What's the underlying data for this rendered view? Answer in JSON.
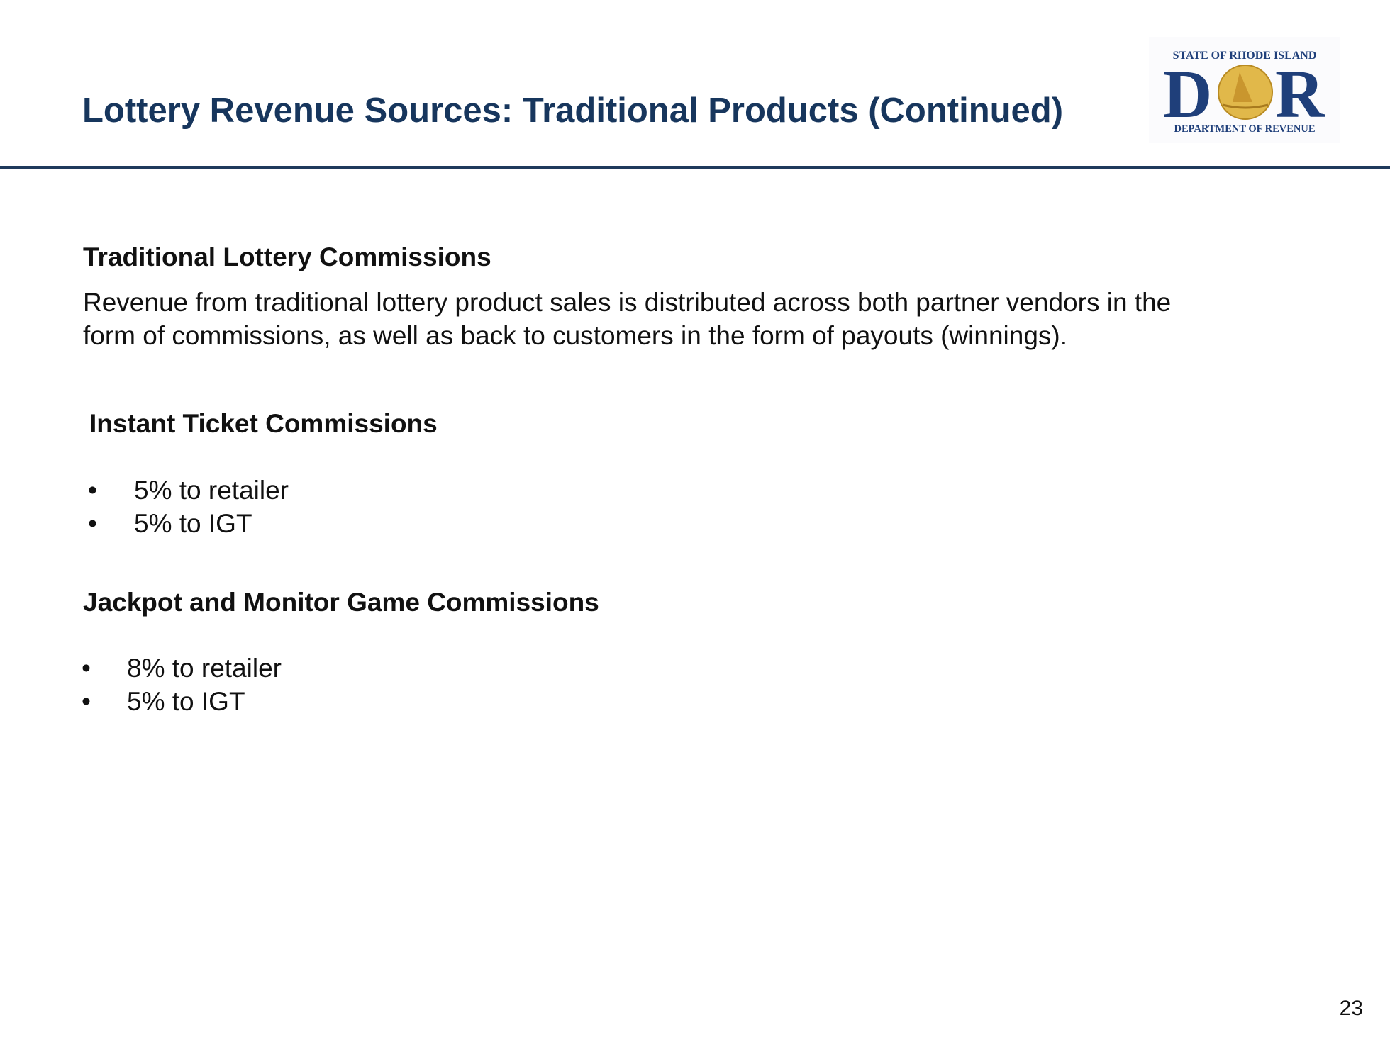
{
  "header": {
    "title": "Lottery Revenue Sources: Traditional Products (Continued)",
    "logo": {
      "top_text": "STATE OF RHODE ISLAND",
      "mark": "DOR",
      "bottom_text": "DEPARTMENT OF REVENUE"
    }
  },
  "sections": [
    {
      "heading": "Traditional Lottery Commissions",
      "body_lines": [
        "Revenue from traditional lottery product sales is distributed across both partner vendors in the",
        "form of commissions, as well as back to customers in the form of payouts (winnings)."
      ]
    },
    {
      "heading": "Instant Ticket Commissions",
      "bullets": [
        "5% to retailer",
        "5% to IGT"
      ]
    },
    {
      "heading": "Jackpot and Monitor Game Commissions",
      "bullets": [
        "8% to retailer",
        "5% to IGT"
      ]
    }
  ],
  "bullet_glyph": "•",
  "page_number": "23",
  "colors": {
    "title": "#17365d",
    "rule": "#1f3a5c",
    "logo_blue": "#1f3f7a",
    "logo_gold": "#d4a93a"
  }
}
